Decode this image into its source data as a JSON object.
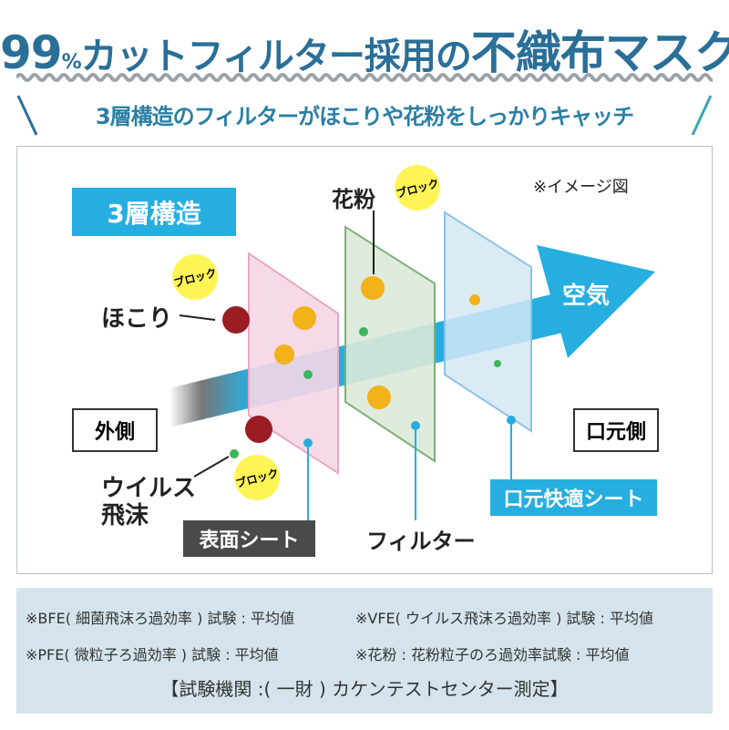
{
  "header": {
    "title_num": "99",
    "title_pct": "%",
    "title_mid": "カットフィルター採用の",
    "title_big": "不織布マスク",
    "subtitle": "3層構造のフィルターがほこりや花粉をしっかりキャッチ"
  },
  "diagram": {
    "structure_label": "3層構造",
    "image_note": "※イメージ図",
    "pollen": "花粉",
    "dust": "ほこり",
    "virus_line1": "ウイルス",
    "virus_line2": "飛沫",
    "block": "ブロック",
    "outside": "外側",
    "mouth_side": "口元側",
    "air": "空気",
    "surface_sheet": "表面シート",
    "filter": "フィルター",
    "comfort_sheet": "口元快適シート",
    "colors": {
      "accent": "#27aee0",
      "title": "#2a6f98",
      "surface_panel": "#f6d6e6",
      "filter_panel": "#dbe9d8",
      "comfort_panel": "#d3e8f5",
      "block_badge": "#fff455",
      "dust_particle": "#9b1d24",
      "pollen_particle": "#f3b21a"
    }
  },
  "notes": {
    "bfe": "※BFE( 細菌飛沫ろ過効率 ) 試験 : 平均値",
    "vfe": "※VFE( ウイルス飛沫ろ過効率 ) 試験 : 平均値",
    "pfe": "※PFE( 微粒子ろ過効率 ) 試験 : 平均値",
    "pollen": "※花粉 : 花粉粒子のろ過効率試験 : 平均値",
    "lab": "【試験機関 :( 一財 ) カケンテストセンター測定】"
  }
}
